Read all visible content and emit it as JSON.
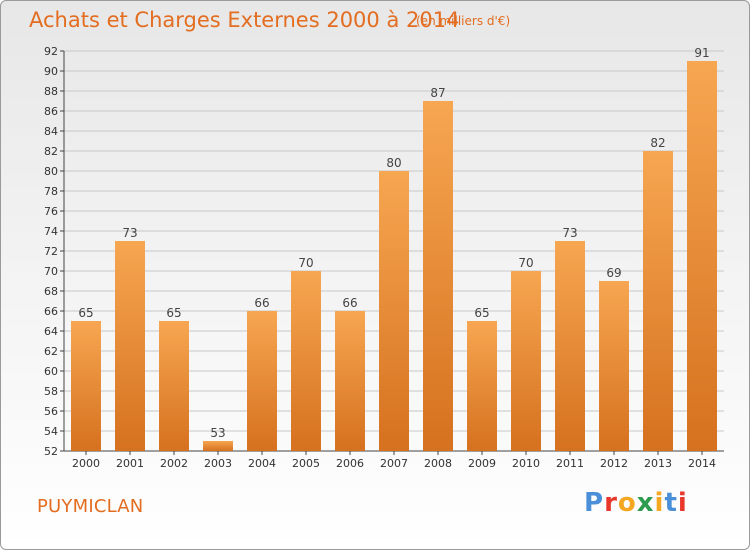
{
  "header": {
    "title": "Achats et Charges Externes 2000 à 2014",
    "subtitle": "(en milliers d'€)"
  },
  "footer": {
    "commune": "PUYMICLAN",
    "brand": "Proxiti",
    "brand_colors": [
      "#4a8fd8",
      "#e8372b",
      "#f5a623",
      "#2e9c4f",
      "#f5a623",
      "#4a8fd8",
      "#e8372b"
    ]
  },
  "colors": {
    "bar_top": "#f7a651",
    "bar_bottom": "#d5711f",
    "accent": "#e36d20",
    "grid": "#c8c8c8"
  },
  "chart_data": {
    "type": "bar",
    "title": "Achats et Charges Externes 2000 à 2014",
    "subtitle": "(en milliers d'€)",
    "categories": [
      "2000",
      "2001",
      "2002",
      "2003",
      "2004",
      "2005",
      "2006",
      "2007",
      "2008",
      "2009",
      "2010",
      "2011",
      "2012",
      "2013",
      "2014"
    ],
    "values": [
      65,
      73,
      65,
      53,
      66,
      70,
      66,
      80,
      87,
      65,
      70,
      73,
      69,
      82,
      91
    ],
    "ylim": [
      52,
      92
    ],
    "ytick_step": 2,
    "grid": true,
    "data_labels": true
  }
}
